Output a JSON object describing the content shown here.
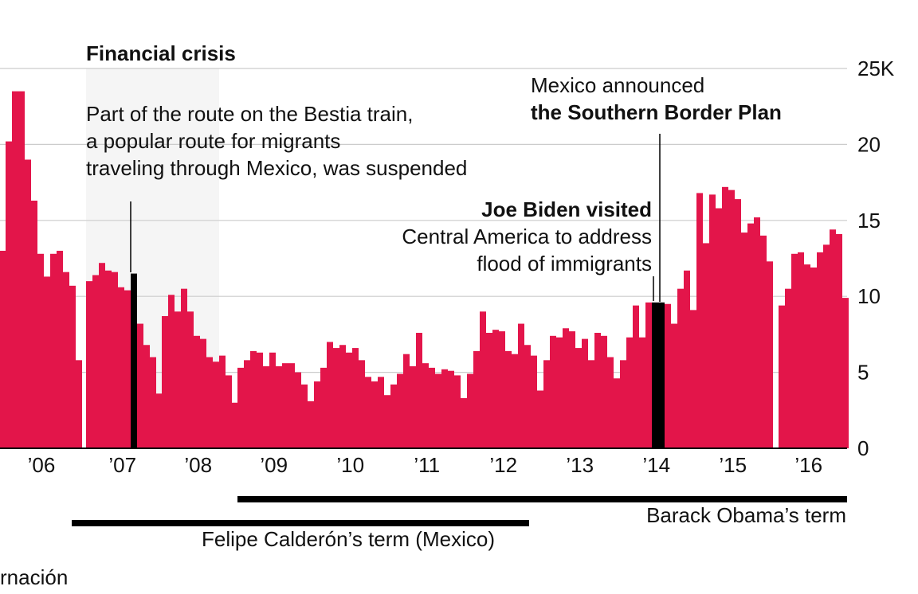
{
  "chart_data": {
    "type": "bar",
    "y_ticks": [
      "0",
      "5",
      "10",
      "15",
      "20",
      "25K"
    ],
    "ylim": [
      0,
      25000
    ],
    "grid": true,
    "x_tick_labels": [
      "’06",
      "’07",
      "’08",
      "’09",
      "’10",
      "’11",
      "’12",
      "’13",
      "’14",
      "’15",
      "’16"
    ],
    "series": [
      {
        "values": [
          [
            13000,
            20200,
            23500,
            23500,
            19000,
            16300,
            12800,
            11300,
            12800,
            13000,
            11600,
            10700,
            5800
          ],
          [
            11000,
            11400,
            12200,
            11700,
            11600,
            10600,
            10400,
            11500,
            8200,
            6800,
            6000,
            3600
          ],
          [
            8700,
            10100,
            9000,
            10500,
            9000,
            7400,
            7200,
            6000,
            5700,
            6100,
            4800,
            3000
          ],
          [
            5300,
            5800,
            6400,
            6300,
            5400,
            6300,
            5400,
            5600,
            5600,
            5000,
            4200,
            3100
          ],
          [
            4400,
            5300,
            7000,
            6600,
            6800,
            6300,
            6600,
            5800,
            4700,
            4400,
            4700,
            3500
          ],
          [
            4200,
            4900,
            6200,
            5400,
            7600,
            5600,
            5300,
            4900,
            5200,
            5100,
            4800,
            3300
          ],
          [
            4900,
            6400,
            9000,
            7600,
            7800,
            7700,
            6400,
            6200,
            8200,
            6800,
            6100,
            3800
          ],
          [
            5800,
            7400,
            7300,
            7900,
            7700,
            6600,
            7200,
            5800,
            7600,
            7400,
            6000,
            4600
          ],
          [
            5800,
            7300,
            9400,
            7300,
            9600,
            9600,
            9600,
            9500,
            8200,
            10500,
            11700,
            9100
          ],
          [
            16800,
            13500,
            16700,
            15800,
            17200,
            17000,
            16400,
            14200,
            14800,
            15200,
            14000,
            12300
          ],
          [
            9400,
            10500,
            12800,
            12900,
            12100,
            11900,
            12900,
            13400,
            14400,
            14100,
            9900
          ]
        ],
        "highlight": [
          [
            1,
            7
          ],
          [
            8,
            5
          ],
          [
            8,
            6
          ]
        ]
      }
    ],
    "colors": {
      "bar": "#e3154a",
      "highlight": "#000000",
      "shade": "#f5f5f5",
      "grid": "#cccccc",
      "axis": "#000000"
    },
    "shade_label": "Financial crisis"
  },
  "annotations": {
    "bestia": [
      "Part of the route on the Bestia train,",
      "a popular route for migrants",
      "traveling through Mexico, was suspended"
    ],
    "biden_bold": "Joe Biden visited",
    "biden": [
      "Central America to address",
      "flood of immigrants"
    ],
    "mexico_line1": "Mexico announced",
    "mexico_bold": "the Southern Border Plan"
  },
  "terms": {
    "obama": "Barack Obama’s term",
    "calderon": "Felipe Calderón’s term (Mexico)"
  },
  "source_fragment": "rnación"
}
